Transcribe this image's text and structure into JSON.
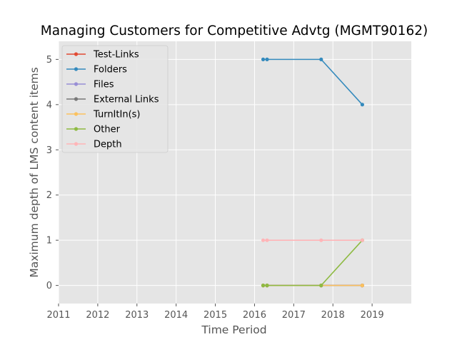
{
  "chart_data": {
    "type": "line",
    "title": "Managing Customers for Competitive Advtg (MGMT90162)",
    "xlabel": "Time Period",
    "ylabel": "Maximum depth of LMS content items",
    "xlim": [
      2011,
      2020
    ],
    "ylim": [
      -0.4,
      5.4
    ],
    "x_ticks": [
      "2011",
      "2012",
      "2013",
      "2014",
      "2015",
      "2016",
      "2017",
      "2018",
      "2019"
    ],
    "y_ticks": [
      "0",
      "1",
      "2",
      "3",
      "4",
      "5"
    ],
    "grid": true,
    "legend_position": "top-left",
    "background": "#e5e5e5",
    "series": [
      {
        "name": "Test-Links",
        "color": "#e24a33",
        "points": [
          [
            2016.22,
            0
          ],
          [
            2016.32,
            0
          ],
          [
            2017.7,
            0
          ],
          [
            2018.75,
            0
          ]
        ]
      },
      {
        "name": "Folders",
        "color": "#348abd",
        "points": [
          [
            2016.22,
            5
          ],
          [
            2016.32,
            5
          ],
          [
            2017.7,
            5
          ],
          [
            2018.75,
            4
          ]
        ]
      },
      {
        "name": "Files",
        "color": "#988ed5",
        "points": [
          [
            2016.22,
            0
          ],
          [
            2016.32,
            0
          ],
          [
            2017.7,
            0
          ],
          [
            2018.75,
            0
          ]
        ]
      },
      {
        "name": "External Links",
        "color": "#777777",
        "points": [
          [
            2016.22,
            0
          ],
          [
            2016.32,
            0
          ],
          [
            2017.7,
            0
          ],
          [
            2018.75,
            0
          ]
        ]
      },
      {
        "name": "TurnItIn(s)",
        "color": "#fbc15e",
        "points": [
          [
            2016.22,
            0
          ],
          [
            2016.32,
            0
          ],
          [
            2017.7,
            0
          ],
          [
            2018.75,
            0
          ]
        ]
      },
      {
        "name": "Other",
        "color": "#8eba42",
        "points": [
          [
            2016.22,
            0
          ],
          [
            2016.32,
            0
          ],
          [
            2017.7,
            0
          ],
          [
            2018.75,
            1
          ]
        ]
      },
      {
        "name": "Depth",
        "color": "#ffb5b8",
        "points": [
          [
            2016.22,
            1
          ],
          [
            2016.32,
            1
          ],
          [
            2017.7,
            1
          ],
          [
            2018.75,
            1
          ]
        ]
      }
    ]
  }
}
